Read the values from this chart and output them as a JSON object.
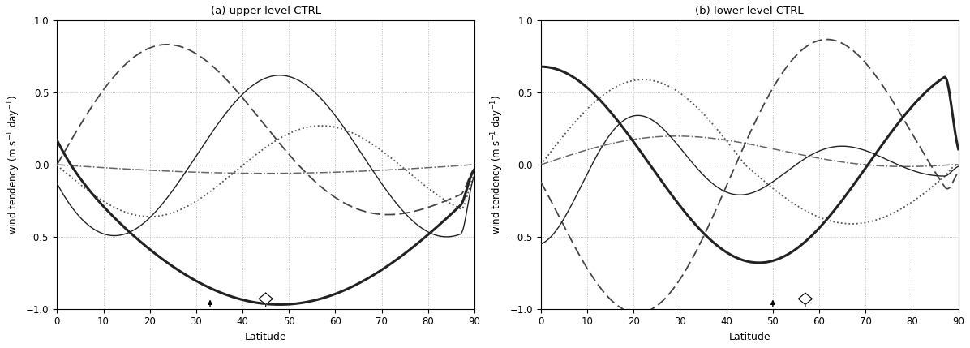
{
  "title_a": "(a) upper level CTRL",
  "title_b": "(b) lower level CTRL",
  "xlabel": "Latitude",
  "ylabel": "wind tendency (m s^-1 day^-1)",
  "xlim": [
    0,
    90
  ],
  "ylim": [
    -1,
    1
  ],
  "xticks": [
    0,
    10,
    20,
    30,
    40,
    50,
    60,
    70,
    80,
    90
  ],
  "yticks": [
    -1,
    -0.5,
    0,
    0.5,
    1
  ],
  "arrow_a_filled": 33,
  "arrow_a_open": 45,
  "arrow_b_filled": 50,
  "arrow_b_open": 57
}
